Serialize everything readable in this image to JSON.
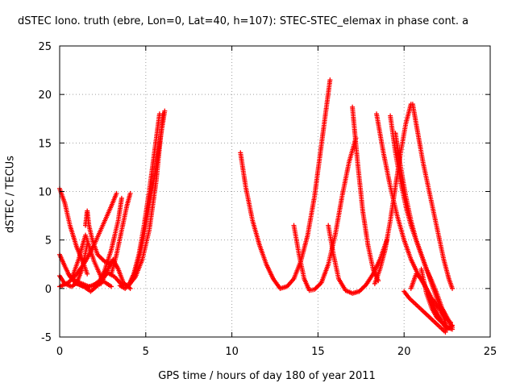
{
  "chart_data": {
    "type": "scatter",
    "title": "dSTEC Iono. truth (ebre, Lon=0, Lat=40, h=107): STEC-STEC_elemax in phase cont. a",
    "xlabel": "GPS time / hours of day 180 of year 2011",
    "ylabel": "dSTEC  / TECUs",
    "xlim": [
      0,
      25
    ],
    "ylim": [
      -5,
      25
    ],
    "xticks": [
      0,
      5,
      10,
      15,
      20,
      25
    ],
    "yticks": [
      -5,
      0,
      5,
      10,
      15,
      20,
      25
    ],
    "grid": true,
    "marker": "+",
    "color": "#ff0000",
    "series": [
      {
        "x": [
          0.0,
          0.3,
          0.6,
          1.0,
          1.4,
          1.6
        ],
        "y": [
          10.3,
          8.8,
          6.5,
          4.2,
          2.5,
          1.5
        ]
      },
      {
        "x": [
          0.0,
          0.3,
          0.6,
          0.9,
          1.3,
          1.7
        ],
        "y": [
          3.5,
          2.3,
          1.2,
          0.8,
          0.5,
          0.2
        ]
      },
      {
        "x": [
          0.0,
          0.3,
          0.7,
          1.0,
          1.3,
          1.6
        ],
        "y": [
          1.3,
          0.5,
          0.2,
          0.6,
          2.0,
          4.5
        ]
      },
      {
        "x": [
          0.0,
          0.5,
          1.0,
          1.5,
          2.0,
          2.5,
          3.0,
          3.3
        ],
        "y": [
          0.2,
          0.6,
          1.5,
          2.8,
          4.5,
          6.5,
          8.5,
          9.8
        ]
      },
      {
        "x": [
          0.7,
          1.1,
          1.5,
          2.0,
          2.5,
          3.0
        ],
        "y": [
          1.0,
          3.0,
          5.5,
          2.8,
          0.8,
          0.2
        ]
      },
      {
        "x": [
          1.5,
          1.6,
          1.7,
          1.9,
          2.2,
          2.6,
          3.0
        ],
        "y": [
          6.5,
          8.0,
          6.5,
          5.0,
          3.5,
          2.8,
          2.5
        ]
      },
      {
        "x": [
          1.0,
          1.4,
          1.8,
          2.2,
          2.6,
          3.0,
          3.4,
          3.6
        ],
        "y": [
          0.5,
          0.2,
          -0.3,
          0.3,
          1.8,
          4.0,
          7.0,
          9.3
        ]
      },
      {
        "x": [
          0.5,
          0.9,
          1.3,
          1.6,
          2.0,
          2.4,
          2.8,
          3.2,
          3.6,
          4.0,
          4.4,
          4.8,
          5.2,
          5.6,
          6.0
        ],
        "y": [
          1.5,
          0.6,
          0.3,
          0.1,
          0.4,
          0.9,
          1.6,
          1.2,
          0.4,
          0.3,
          1.2,
          3.0,
          6.0,
          11.0,
          18.0
        ]
      },
      {
        "x": [
          2.0,
          2.4,
          2.8,
          3.1,
          3.4,
          3.7,
          3.9,
          4.1
        ],
        "y": [
          0.2,
          0.5,
          2.0,
          3.0,
          2.0,
          0.6,
          0.3,
          0.0
        ]
      },
      {
        "x": [
          3.5,
          3.8,
          4.0,
          4.3,
          4.6,
          4.9,
          5.2,
          5.5,
          5.8
        ],
        "y": [
          0.3,
          0.0,
          0.3,
          1.5,
          3.5,
          6.5,
          10.0,
          14.0,
          18.0
        ]
      },
      {
        "x": [
          3.0,
          3.3,
          3.6,
          3.9,
          4.1
        ],
        "y": [
          1.5,
          3.5,
          6.0,
          8.5,
          9.8
        ]
      },
      {
        "x": [
          4.0,
          4.3,
          4.6,
          4.9,
          5.2,
          5.5,
          5.8,
          6.1
        ],
        "y": [
          0.3,
          1.3,
          3.0,
          5.5,
          8.5,
          11.5,
          15.0,
          18.3
        ]
      },
      {
        "x": [
          10.5,
          10.8,
          11.2,
          11.6,
          12.0,
          12.4,
          12.8,
          13.2,
          13.6,
          14.0,
          14.4,
          14.8,
          15.1,
          15.4,
          15.7
        ],
        "y": [
          14.0,
          10.5,
          7.0,
          4.5,
          2.5,
          1.0,
          0.0,
          0.2,
          1.0,
          2.8,
          5.5,
          9.5,
          13.5,
          17.5,
          21.5
        ]
      },
      {
        "x": [
          13.6,
          13.9,
          14.2,
          14.5,
          14.8,
          15.2,
          15.6,
          16.0,
          16.4,
          16.8,
          17.2
        ],
        "y": [
          6.5,
          3.5,
          1.0,
          -0.2,
          -0.1,
          0.6,
          2.5,
          5.5,
          9.5,
          13.0,
          15.5
        ]
      },
      {
        "x": [
          15.6,
          15.9,
          16.2,
          16.6,
          17.0,
          17.4,
          17.8,
          18.2,
          18.6,
          19.0
        ],
        "y": [
          6.5,
          3.5,
          1.0,
          -0.2,
          -0.5,
          -0.3,
          0.4,
          1.5,
          3.0,
          5.0
        ]
      },
      {
        "x": [
          17.0,
          17.3,
          17.6,
          17.9,
          18.2,
          18.5
        ],
        "y": [
          18.7,
          13.0,
          8.0,
          4.5,
          2.0,
          0.8
        ]
      },
      {
        "x": [
          18.4,
          18.8,
          19.2,
          19.6,
          20.0,
          20.4,
          20.8,
          21.2,
          21.6,
          22.0,
          22.4,
          22.7
        ],
        "y": [
          18.0,
          14.0,
          10.5,
          7.5,
          5.0,
          3.0,
          1.5,
          0.3,
          -1.0,
          -2.0,
          -3.0,
          -3.5
        ]
      },
      {
        "x": [
          18.3,
          18.6,
          18.9,
          19.2,
          19.5,
          19.8,
          20.1,
          20.4
        ],
        "y": [
          0.5,
          2.0,
          4.0,
          7.0,
          10.5,
          14.0,
          17.0,
          19.0
        ]
      },
      {
        "x": [
          19.2,
          19.5,
          19.8,
          20.1,
          20.4,
          20.7,
          21.0,
          21.3,
          21.6,
          21.9,
          22.2,
          22.5,
          22.8
        ],
        "y": [
          17.8,
          14.0,
          11.0,
          8.5,
          6.5,
          5.0,
          3.5,
          2.0,
          0.8,
          -0.5,
          -2.0,
          -3.0,
          -4.0
        ]
      },
      {
        "x": [
          20.5,
          20.8,
          21.1,
          21.4,
          21.7,
          22.0,
          22.3,
          22.6,
          22.8
        ],
        "y": [
          19.0,
          16.0,
          13.0,
          10.5,
          8.0,
          5.5,
          3.0,
          1.0,
          0.0
        ]
      },
      {
        "x": [
          19.5,
          19.8,
          20.1,
          20.4,
          20.7,
          21.0,
          21.3,
          21.6,
          21.9,
          22.2,
          22.5
        ],
        "y": [
          16.0,
          12.5,
          9.5,
          7.0,
          5.0,
          3.5,
          2.0,
          0.5,
          -1.0,
          -2.5,
          -4.0
        ]
      },
      {
        "x": [
          20.4,
          20.7,
          21.0,
          21.3,
          21.6,
          21.9,
          22.2,
          22.5,
          22.8
        ],
        "y": [
          0.0,
          1.5,
          1.0,
          0.0,
          -1.5,
          -2.5,
          -3.5,
          -4.2,
          -3.8
        ]
      },
      {
        "x": [
          20.0,
          20.3,
          20.6,
          20.9,
          21.2,
          21.5,
          21.8,
          22.1,
          22.4
        ],
        "y": [
          -0.3,
          -1.0,
          -1.5,
          -2.0,
          -2.5,
          -3.0,
          -3.5,
          -4.0,
          -4.5
        ]
      },
      {
        "x": [
          21.0,
          21.3,
          21.6,
          21.9,
          22.2,
          22.5,
          22.8
        ],
        "y": [
          2.0,
          -0.5,
          -2.0,
          -3.0,
          -3.5,
          -4.0,
          -4.2
        ]
      }
    ]
  }
}
